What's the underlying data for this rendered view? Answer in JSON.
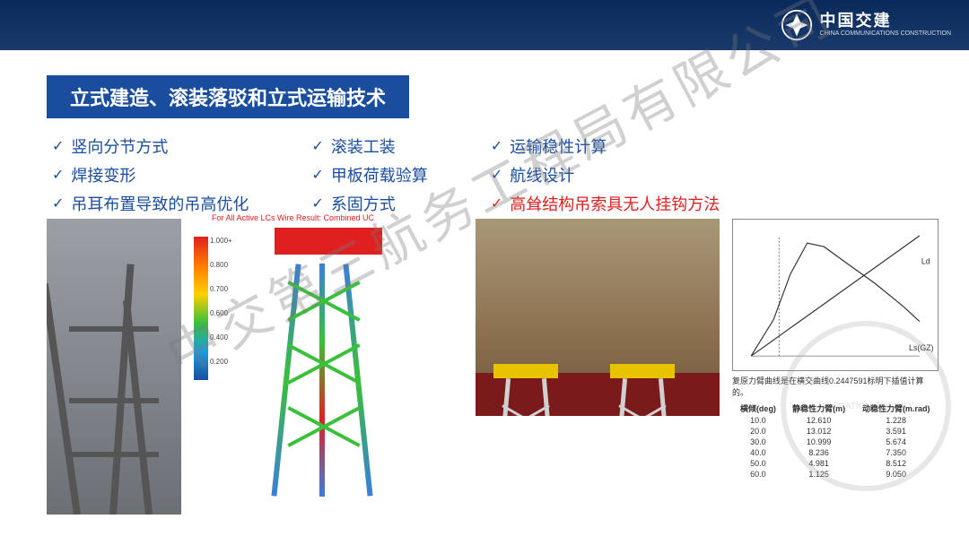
{
  "header": {
    "logo_cn": "中国交建",
    "logo_en": "CHINA COMMUNICATIONS CONSTRUCTION"
  },
  "title": "立式建造、滚装落驳和立式运输技术",
  "columns": [
    {
      "items": [
        {
          "text": "竖向分节方式",
          "red": false
        },
        {
          "text": "焊接变形",
          "red": false
        },
        {
          "text": "吊耳布置导致的吊高优化",
          "red": false
        }
      ]
    },
    {
      "items": [
        {
          "text": "滚装工装",
          "red": false
        },
        {
          "text": "甲板荷载验算",
          "red": false
        },
        {
          "text": "系固方式",
          "red": false
        }
      ]
    },
    {
      "items": [
        {
          "text": "运输稳性计算",
          "red": false
        },
        {
          "text": "航线设计",
          "red": false
        },
        {
          "text": "高耸结构吊索具无人挂钩方法",
          "red": true
        }
      ]
    }
  ],
  "fea": {
    "title": "For All Active LCs\nWire Result: Combined UC",
    "colorbar_values": [
      "1.000+",
      "0.800",
      "0.700",
      "0.600",
      "0.400",
      "0.200"
    ]
  },
  "chart": {
    "caption": "复原力臂曲线是在横交曲线0.2447591标明下插值计算的。",
    "ylabel": "",
    "label_right_top": "Ld",
    "label_right_bottom": "Ls(GZ)",
    "curve_color": "#333333",
    "axis_color": "#888888",
    "xlim": [
      0,
      60
    ],
    "ylim": [
      0,
      14
    ],
    "curves": {
      "gz": [
        [
          0,
          0
        ],
        [
          8,
          4
        ],
        [
          14,
          9
        ],
        [
          20,
          12.4
        ],
        [
          26,
          12.0
        ],
        [
          34,
          10.2
        ],
        [
          44,
          8.0
        ],
        [
          54,
          5.5
        ],
        [
          60,
          3.8
        ]
      ],
      "ld": [
        [
          0,
          0
        ],
        [
          10,
          2.2
        ],
        [
          20,
          4.4
        ],
        [
          30,
          6.6
        ],
        [
          40,
          8.8
        ],
        [
          50,
          11
        ],
        [
          60,
          13.2
        ]
      ],
      "vert": [
        [
          10,
          0
        ],
        [
          10,
          13
        ]
      ]
    }
  },
  "table": {
    "headers": [
      "横倾(deg)",
      "静稳性力臂(m)",
      "动稳性力臂(m.rad)"
    ],
    "rows": [
      [
        "10.0",
        "12.610",
        "1.228"
      ],
      [
        "20.0",
        "13.012",
        "3.591"
      ],
      [
        "30.0",
        "10.999",
        "5.674"
      ],
      [
        "40.0",
        "8.236",
        "7.350"
      ],
      [
        "50.0",
        "4.981",
        "8.512"
      ],
      [
        "60.0",
        "1.125",
        "9.050"
      ]
    ]
  },
  "watermark": "中交第三航务工程局有限公司",
  "watermark_circle": "NAVIGATION SOCIETY"
}
